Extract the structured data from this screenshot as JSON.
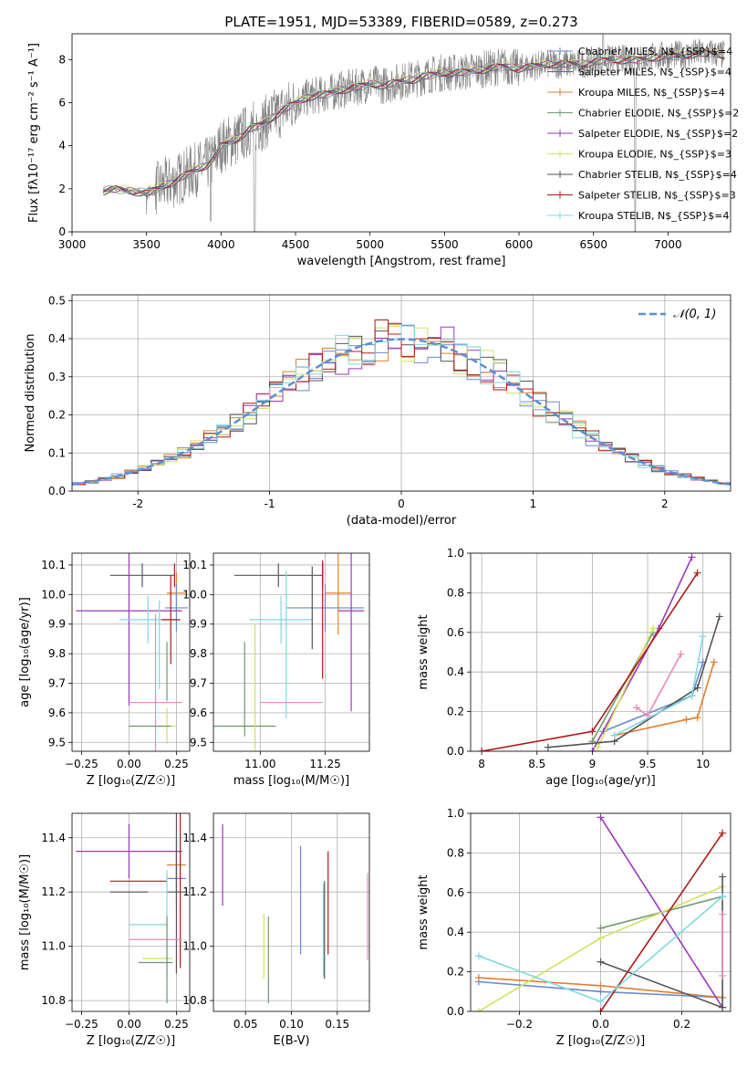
{
  "chart_data": [
    {
      "type": "line",
      "title": "PLATE=1951, MJD=53389, FIBERID=0589, z=0.273",
      "xlabel": "wavelength [Angstrom, rest frame]",
      "ylabel": "Flux [fλ10⁻¹⁷ erg cm⁻² s⁻¹ A⁻¹]",
      "xlim": [
        3000,
        7420
      ],
      "ylim": [
        0,
        9.2
      ],
      "xticks": [
        3000,
        3500,
        4000,
        4500,
        5000,
        5500,
        6000,
        6500,
        7000
      ],
      "yticks": [
        0,
        2,
        4,
        6,
        8
      ],
      "grid": false,
      "legend_position": "top-right",
      "data_color": "#808080",
      "continuum_x": [
        3210,
        3300,
        3400,
        3500,
        3600,
        3700,
        3800,
        3900,
        3950,
        4000,
        4100,
        4200,
        4300,
        4400,
        4500,
        4600,
        4700,
        4800,
        4900,
        5000,
        5100,
        5200,
        5300,
        5400,
        5500,
        5600,
        5700,
        5800,
        5900,
        6000,
        6100,
        6200,
        6300,
        6400,
        6500,
        6600,
        6700,
        6800,
        6900,
        7000,
        7100,
        7200,
        7300,
        7380
      ],
      "continuum_y": [
        1.9,
        2.0,
        1.9,
        1.8,
        2.1,
        2.4,
        2.8,
        3.1,
        3.4,
        4.0,
        4.3,
        4.8,
        5.1,
        5.6,
        6.0,
        6.3,
        6.4,
        6.6,
        6.7,
        6.9,
        6.8,
        7.0,
        7.1,
        7.3,
        7.4,
        7.4,
        7.5,
        7.6,
        7.7,
        7.6,
        7.7,
        7.8,
        7.8,
        7.8,
        7.9,
        8.0,
        8.0,
        8.0,
        8.1,
        8.2,
        8.2,
        8.3,
        8.3,
        8.2
      ],
      "series": [
        {
          "name": "Chabrier MILES, N$_{SSP}$=4",
          "color": "#6a89cc"
        },
        {
          "name": "Salpeter MILES, N$_{SSP}$=4",
          "color": "#7a5ba8"
        },
        {
          "name": "Kroupa MILES, N$_{SSP}$=4",
          "color": "#e08030"
        },
        {
          "name": "Chabrier ELODIE, N$_{SSP}$=2",
          "color": "#6e9a6e"
        },
        {
          "name": "Salpeter ELODIE, N$_{SSP}$=2",
          "color": "#9a3ab8"
        },
        {
          "name": "Kroupa ELODIE, N$_{SSP}$=3",
          "color": "#d4e060"
        },
        {
          "name": "Chabrier STELIB, N$_{SSP}$=4",
          "color": "#555555"
        },
        {
          "name": "Salpeter STELIB, N$_{SSP}$=3",
          "color": "#b01818"
        },
        {
          "name": "Kroupa STELIB, N$_{SSP}$=4",
          "color": "#80d8e0"
        }
      ]
    },
    {
      "type": "bar",
      "xlabel": "(data-model)/error",
      "ylabel": "Normed distribution",
      "xlim": [
        -2.5,
        2.5
      ],
      "ylim": [
        0,
        0.515
      ],
      "xticks": [
        -2,
        -1,
        0,
        1,
        2
      ],
      "yticks": [
        0.0,
        0.1,
        0.2,
        0.3,
        0.4,
        0.5
      ],
      "grid": true,
      "legend_position": "top-right",
      "legend": "𝒩(0, 1)",
      "gaussian_color": "#5b8fd0",
      "bin_width": 0.1,
      "hist_colors": [
        "#6a89cc",
        "#e08030",
        "#9a3ab8",
        "#d4e060",
        "#555555",
        "#b01818",
        "#80d8e0"
      ]
    },
    {
      "type": "scatter",
      "xlabel": "Z [log₁₀(Z/Z☉)]",
      "ylabel": "age  [log₁₀(age/yr)]",
      "xlim": [
        -0.3,
        0.32
      ],
      "ylim": [
        9.47,
        10.14
      ],
      "xticks": [
        -0.25,
        0.0,
        0.25
      ],
      "xticklabels": [
        "−0.25",
        "0.00",
        "0.25"
      ],
      "yticks": [
        9.5,
        9.6,
        9.7,
        9.8,
        9.9,
        10.0,
        10.1
      ],
      "grid": true,
      "points": [
        {
          "x": 0.24,
          "y": 10.065,
          "xerr": 0.0,
          "yerr": 0.04,
          "color": "#b01818"
        },
        {
          "x": 0.07,
          "y": 10.065,
          "xerr": 0.17,
          "yerr": 0.04,
          "color": "#555555"
        },
        {
          "x": 0.25,
          "y": 10.005,
          "xerr": 0.05,
          "yerr": 0.07,
          "color": "#e08030"
        },
        {
          "x": 0.25,
          "y": 9.955,
          "xerr": 0.06,
          "yerr": 0.08,
          "color": "#6a89cc"
        },
        {
          "x": 0.0,
          "y": 9.945,
          "xerr": 0.28,
          "yerr": 0.32,
          "color": "#9a3ab8"
        },
        {
          "x": 0.1,
          "y": 9.915,
          "xerr": 0.15,
          "yerr": 0.08,
          "color": "#80d8e0"
        },
        {
          "x": 0.22,
          "y": 9.915,
          "xerr": 0.05,
          "yerr": 0.15,
          "color": "#b01818"
        },
        {
          "x": 0.16,
          "y": 9.83,
          "xerr": 0.0,
          "yerr": 0.15,
          "color": "#80d8e0"
        },
        {
          "x": 0.14,
          "y": 9.635,
          "xerr": 0.14,
          "yerr": 0.3,
          "color": "#e88ab8"
        },
        {
          "x": 0.2,
          "y": 9.555,
          "xerr": 0.05,
          "yerr": 0.06,
          "color": "#d4e060"
        },
        {
          "x": 0.11,
          "y": 9.555,
          "xerr": 0.11,
          "yerr": 0.0,
          "color": "#6e9a6e"
        },
        {
          "x": 0.2,
          "y": 9.74,
          "xerr": 0.0,
          "yerr": 0.1,
          "color": "#6e9a6e"
        }
      ]
    },
    {
      "type": "scatter",
      "xlabel": "mass [log₁₀(M/M☉)]",
      "xlim": [
        10.82,
        11.42
      ],
      "ylim": [
        9.47,
        10.14
      ],
      "xticks": [
        11.0,
        11.25
      ],
      "xticklabels": [
        "11.00",
        "11.25"
      ],
      "yticks": [
        9.5,
        9.6,
        9.7,
        9.8,
        9.9,
        10.0,
        10.1
      ],
      "grid": true,
      "points": [
        {
          "x": 11.24,
          "y": 10.065,
          "xerr": 0.0,
          "yerr": 0.04,
          "color": "#b01818"
        },
        {
          "x": 11.07,
          "y": 10.065,
          "xerr": 0.17,
          "yerr": 0.04,
          "color": "#555555"
        },
        {
          "x": 11.3,
          "y": 10.005,
          "xerr": 0.05,
          "yerr": 0.14,
          "color": "#e08030"
        },
        {
          "x": 11.25,
          "y": 9.955,
          "xerr": 0.15,
          "yerr": 0.08,
          "color": "#6a89cc"
        },
        {
          "x": 11.35,
          "y": 9.945,
          "xerr": 0.05,
          "yerr": 0.34,
          "color": "#9a3ab8"
        },
        {
          "x": 11.08,
          "y": 9.915,
          "xerr": 0.12,
          "yerr": 0.08,
          "color": "#80d8e0"
        },
        {
          "x": 11.24,
          "y": 9.915,
          "xerr": 0.0,
          "yerr": 0.2,
          "color": "#b01818"
        },
        {
          "x": 11.2,
          "y": 9.955,
          "xerr": 0.0,
          "yerr": 0.14,
          "color": "#555555"
        },
        {
          "x": 11.1,
          "y": 9.83,
          "xerr": 0.0,
          "yerr": 0.25,
          "color": "#80d8e0"
        },
        {
          "x": 11.12,
          "y": 9.635,
          "xerr": 0.12,
          "yerr": 0.0,
          "color": "#e88ab8"
        },
        {
          "x": 10.96,
          "y": 9.555,
          "xerr": 0.1,
          "yerr": 0.0,
          "color": "#d4e060"
        },
        {
          "x": 10.94,
          "y": 9.555,
          "xerr": 0.12,
          "yerr": 0.0,
          "color": "#6e9a6e"
        },
        {
          "x": 10.94,
          "y": 9.68,
          "xerr": 0.0,
          "yerr": 0.16,
          "color": "#6e9a6e"
        },
        {
          "x": 10.98,
          "y": 9.67,
          "xerr": 0.0,
          "yerr": 0.23,
          "color": "#d4e060"
        }
      ]
    },
    {
      "type": "line",
      "xlabel": "age  [log₁₀(age/yr)]",
      "ylabel": "mass weight",
      "xlim": [
        7.9,
        10.25
      ],
      "ylim": [
        0,
        1.0
      ],
      "xticks": [
        8.0,
        8.5,
        9.0,
        9.5,
        10.0
      ],
      "yticks": [
        0.0,
        0.2,
        0.4,
        0.6,
        0.8,
        1.0
      ],
      "grid": true,
      "series": [
        {
          "color": "#6a89cc",
          "x": [
            9.1,
            9.9,
            10.0
          ],
          "y": [
            0.1,
            0.28,
            0.45
          ]
        },
        {
          "color": "#e08030",
          "x": [
            9.2,
            9.85,
            9.95,
            10.1
          ],
          "y": [
            0.08,
            0.16,
            0.17,
            0.45
          ]
        },
        {
          "color": "#9a3ab8",
          "x": [
            9.0,
            9.6,
            9.9
          ],
          "y": [
            0.0,
            0.62,
            0.98
          ]
        },
        {
          "color": "#6e9a6e",
          "x": [
            9.0,
            9.55
          ],
          "y": [
            0.05,
            0.6
          ]
        },
        {
          "color": "#d4e060",
          "x": [
            9.05,
            9.55
          ],
          "y": [
            0.02,
            0.62
          ]
        },
        {
          "color": "#555555",
          "x": [
            8.6,
            9.2,
            9.95,
            10.15
          ],
          "y": [
            0.02,
            0.05,
            0.32,
            0.68
          ]
        },
        {
          "color": "#b01818",
          "x": [
            8.0,
            9.0,
            9.95
          ],
          "y": [
            0.0,
            0.1,
            0.9
          ]
        },
        {
          "color": "#80d8e0",
          "x": [
            9.2,
            9.9,
            10.0
          ],
          "y": [
            0.08,
            0.28,
            0.58
          ]
        },
        {
          "color": "#e88ab8",
          "x": [
            9.4,
            9.5,
            9.8
          ],
          "y": [
            0.22,
            0.18,
            0.49
          ]
        }
      ]
    },
    {
      "type": "scatter",
      "xlabel": "Z [log₁₀(Z/Z☉)]",
      "ylabel": "mass [log₁₀(M/M☉)]",
      "xlim": [
        -0.3,
        0.32
      ],
      "ylim": [
        10.76,
        11.49
      ],
      "xticks": [
        -0.25,
        0.0,
        0.25
      ],
      "xticklabels": [
        "−0.25",
        "0.00",
        "0.25"
      ],
      "yticks": [
        10.8,
        11.0,
        11.2,
        11.4
      ],
      "grid": true,
      "points": [
        {
          "x": 0.0,
          "y": 11.35,
          "xerr": 0.28,
          "yerr": 0.1,
          "color": "#9a3ab8"
        },
        {
          "x": 0.25,
          "y": 11.3,
          "xerr": 0.05,
          "yerr": 0.1,
          "color": "#e08030"
        },
        {
          "x": 0.25,
          "y": 11.25,
          "xerr": 0.05,
          "yerr": 0.1,
          "color": "#6a89cc"
        },
        {
          "x": 0.05,
          "y": 11.24,
          "xerr": 0.15,
          "yerr": 0.0,
          "color": "#b01818"
        },
        {
          "x": 0.27,
          "y": 11.22,
          "xerr": 0.0,
          "yerr": 0.3,
          "color": "#b01818"
        },
        {
          "x": 0.0,
          "y": 11.2,
          "xerr": 0.1,
          "yerr": 0.0,
          "color": "#555555"
        },
        {
          "x": 0.25,
          "y": 11.2,
          "xerr": 0.05,
          "yerr": 0.3,
          "color": "#555555"
        },
        {
          "x": 0.1,
          "y": 11.08,
          "xerr": 0.1,
          "yerr": 0.0,
          "color": "#80d8e0"
        },
        {
          "x": 0.2,
          "y": 11.08,
          "xerr": 0.0,
          "yerr": 0.2,
          "color": "#80d8e0"
        },
        {
          "x": 0.14,
          "y": 11.025,
          "xerr": 0.14,
          "yerr": 0.0,
          "color": "#e88ab8"
        },
        {
          "x": 0.15,
          "y": 10.955,
          "xerr": 0.08,
          "yerr": 0.0,
          "color": "#d4e060"
        },
        {
          "x": 0.14,
          "y": 10.94,
          "xerr": 0.09,
          "yerr": 0.0,
          "color": "#6e9a6e"
        },
        {
          "x": 0.2,
          "y": 10.95,
          "xerr": 0.0,
          "yerr": 0.16,
          "color": "#6e9a6e"
        }
      ]
    },
    {
      "type": "scatter",
      "xlabel": "E(B-V)",
      "xlim": [
        0.015,
        0.185
      ],
      "ylim": [
        10.76,
        11.49
      ],
      "xticks": [
        0.05,
        0.1,
        0.15
      ],
      "xticklabels": [
        "0.05",
        "0.10",
        "0.15"
      ],
      "yticks": [
        10.8,
        11.0,
        11.2,
        11.4
      ],
      "grid": true,
      "points": [
        {
          "x": 0.025,
          "y": 11.3,
          "xerr": 0.0,
          "yerr": 0.15,
          "color": "#9a3ab8"
        },
        {
          "x": 0.07,
          "y": 11.0,
          "xerr": 0.0,
          "yerr": 0.12,
          "color": "#d4e060"
        },
        {
          "x": 0.075,
          "y": 10.95,
          "xerr": 0.0,
          "yerr": 0.16,
          "color": "#6e9a6e"
        },
        {
          "x": 0.11,
          "y": 11.17,
          "xerr": 0.0,
          "yerr": 0.2,
          "color": "#6a89cc"
        },
        {
          "x": 0.135,
          "y": 11.06,
          "xerr": 0.0,
          "yerr": 0.17,
          "color": "#80d8e0"
        },
        {
          "x": 0.136,
          "y": 11.06,
          "xerr": 0.0,
          "yerr": 0.18,
          "color": "#555555"
        },
        {
          "x": 0.14,
          "y": 11.16,
          "xerr": 0.0,
          "yerr": 0.19,
          "color": "#b01818"
        },
        {
          "x": 0.183,
          "y": 11.11,
          "xerr": 0.0,
          "yerr": 0.16,
          "color": "#e88ab8"
        }
      ]
    },
    {
      "type": "line",
      "xlabel": "Z [log₁₀(Z/Z☉)]",
      "ylabel": "mass weight",
      "xlim": [
        -0.32,
        0.32
      ],
      "ylim": [
        0,
        1.0
      ],
      "xticks": [
        -0.2,
        0.0,
        0.2
      ],
      "xticklabels": [
        "−0.2",
        "0.0",
        "0.2"
      ],
      "yticks": [
        0.0,
        0.2,
        0.4,
        0.6,
        0.8,
        1.0
      ],
      "grid": true,
      "series": [
        {
          "color": "#6a89cc",
          "x": [
            -0.3,
            0.0,
            0.3
          ],
          "y": [
            0.15,
            0.1,
            0.07
          ]
        },
        {
          "color": "#e08030",
          "x": [
            -0.3,
            0.0,
            0.3
          ],
          "y": [
            0.17,
            0.13,
            0.07
          ]
        },
        {
          "color": "#9a3ab8",
          "x": [
            0.0,
            0.3
          ],
          "y": [
            0.98,
            0.02
          ]
        },
        {
          "color": "#6e9a6e",
          "x": [
            0.0,
            0.3
          ],
          "y": [
            0.42,
            0.58
          ]
        },
        {
          "color": "#d4e060",
          "x": [
            -0.3,
            0.0,
            0.3
          ],
          "y": [
            0.0,
            0.37,
            0.63
          ]
        },
        {
          "color": "#555555",
          "x": [
            0.0,
            0.3,
            0.3
          ],
          "y": [
            0.25,
            0.02,
            0.68
          ]
        },
        {
          "color": "#b01818",
          "x": [
            0.0,
            0.3
          ],
          "y": [
            0.0,
            0.9
          ]
        },
        {
          "color": "#80d8e0",
          "x": [
            -0.3,
            0.0,
            0.3
          ],
          "y": [
            0.28,
            0.05,
            0.58
          ]
        },
        {
          "color": "#e88ab8",
          "x": [
            0.3,
            0.3
          ],
          "y": [
            0.18,
            0.49
          ]
        }
      ]
    }
  ]
}
